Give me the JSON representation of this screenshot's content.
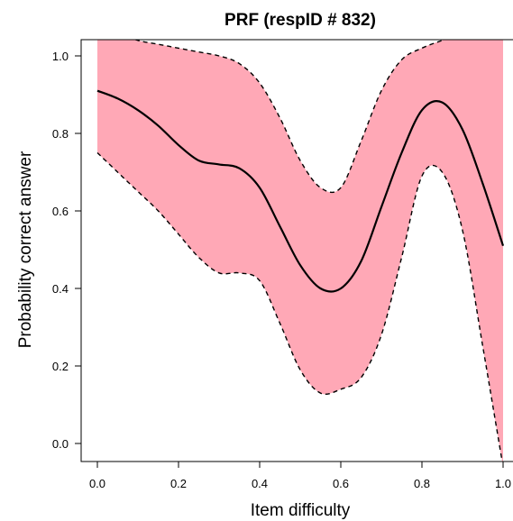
{
  "chart_data": {
    "type": "line",
    "title": "PRF (respID # 832)",
    "xlabel": "Item difficulty",
    "ylabel": "Probability correct answer",
    "xlim": [
      0,
      1
    ],
    "ylim": [
      0,
      1
    ],
    "x_ticks": [
      "0.0",
      "0.2",
      "0.4",
      "0.6",
      "0.8",
      "1.0"
    ],
    "y_ticks": [
      "0.0",
      "0.2",
      "0.4",
      "0.6",
      "0.8",
      "1.0"
    ],
    "grid": false,
    "legend": "none",
    "colors": {
      "band": "#ffa8b6",
      "line": "#000000"
    },
    "x": [
      0.0,
      0.05,
      0.1,
      0.15,
      0.2,
      0.25,
      0.3,
      0.35,
      0.4,
      0.45,
      0.5,
      0.55,
      0.6,
      0.65,
      0.7,
      0.75,
      0.8,
      0.85,
      0.9,
      0.95,
      1.0
    ],
    "series": [
      {
        "values": [
          0.91,
          0.89,
          0.86,
          0.82,
          0.77,
          0.73,
          0.72,
          0.71,
          0.66,
          0.56,
          0.46,
          0.4,
          0.4,
          0.47,
          0.61,
          0.75,
          0.86,
          0.88,
          0.81,
          0.67,
          0.51
        ]
      },
      {
        "values": [
          1.08,
          1.06,
          1.04,
          1.03,
          1.02,
          1.01,
          1.0,
          0.98,
          0.93,
          0.84,
          0.73,
          0.66,
          0.66,
          0.78,
          0.91,
          0.99,
          1.02,
          1.04,
          1.06,
          1.08,
          1.1
        ]
      },
      {
        "values": [
          0.75,
          0.7,
          0.65,
          0.6,
          0.54,
          0.48,
          0.44,
          0.44,
          0.42,
          0.31,
          0.19,
          0.13,
          0.14,
          0.17,
          0.28,
          0.48,
          0.69,
          0.7,
          0.55,
          0.25,
          -0.06
        ]
      }
    ]
  }
}
